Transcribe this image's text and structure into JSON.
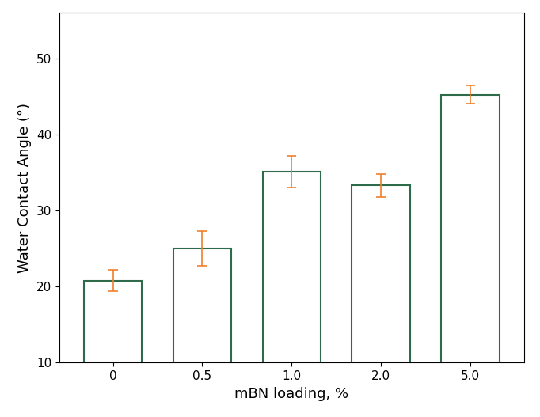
{
  "chart_data": {
    "type": "bar",
    "categories": [
      "0",
      "0.5",
      "1.0",
      "2.0",
      "5.0"
    ],
    "values": [
      20.8,
      25.0,
      35.1,
      33.3,
      45.2
    ],
    "errors": [
      1.4,
      2.3,
      2.1,
      1.5,
      1.2
    ],
    "color": "#2e6b4a",
    "x_label": "mBN loading, %",
    "y_label": "Water Contact Angle (°)",
    "ylim": [
      10,
      56
    ],
    "yticks": [
      10,
      20,
      30,
      40,
      50
    ],
    "grid": false
  }
}
